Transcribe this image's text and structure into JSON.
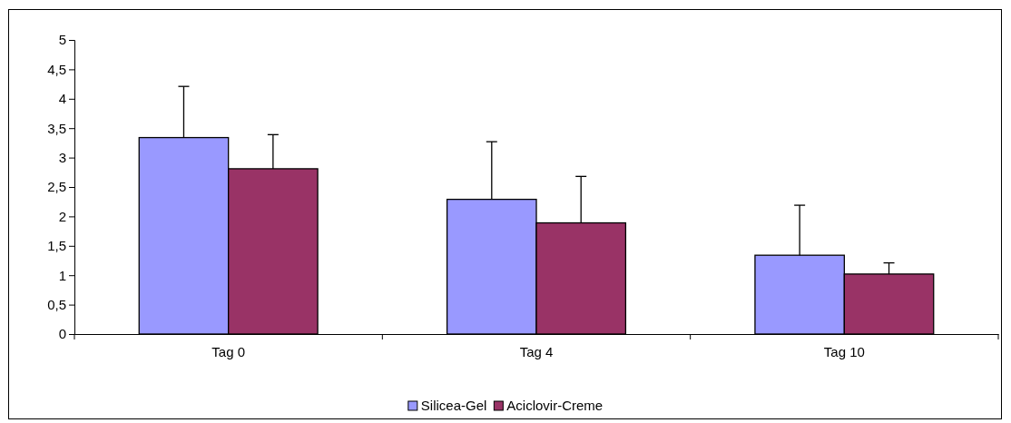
{
  "chart_data": {
    "type": "bar",
    "categories": [
      "Tag 0",
      "Tag 4",
      "Tag 10"
    ],
    "series": [
      {
        "name": "Silicea-Gel",
        "color": "#9999ff",
        "values": [
          3.34,
          2.29,
          1.34
        ],
        "errors": [
          [
            3.34,
            4.21
          ],
          [
            2.29,
            3.27
          ],
          [
            1.34,
            2.19
          ]
        ]
      },
      {
        "name": "Aciclovir-Creme",
        "color": "#993366",
        "values": [
          2.81,
          1.89,
          1.02
        ],
        "errors": [
          [
            2.81,
            3.39
          ],
          [
            1.89,
            2.68
          ],
          [
            1.02,
            1.21
          ]
        ]
      }
    ],
    "ylim": [
      0,
      5
    ],
    "yticks": [
      {
        "value": 0,
        "label": "0"
      },
      {
        "value": 0.5,
        "label": "0,5"
      },
      {
        "value": 1,
        "label": "1"
      },
      {
        "value": 1.5,
        "label": "1,5"
      },
      {
        "value": 2,
        "label": "2"
      },
      {
        "value": 2.5,
        "label": "2,5"
      },
      {
        "value": 3,
        "label": "3"
      },
      {
        "value": 3.5,
        "label": "3,5"
      },
      {
        "value": 4,
        "label": "4"
      },
      {
        "value": 4.5,
        "label": "4,5"
      },
      {
        "value": 5,
        "label": "5"
      }
    ],
    "grid": false,
    "legend": "bottom"
  }
}
